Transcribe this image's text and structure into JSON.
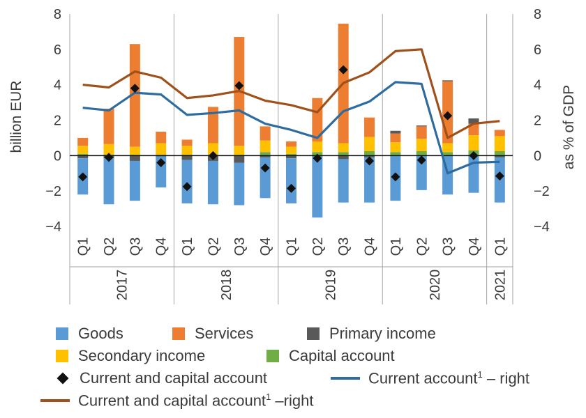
{
  "chart_data": {
    "type": "bar",
    "y_left_label": "billion EUR",
    "y_right_label": "as % of GDP",
    "ylim": [
      -4,
      8
    ],
    "y_ticks": [
      -4,
      -2,
      0,
      2,
      4,
      6,
      8
    ],
    "y_tick_labels": [
      "−4",
      "−2",
      "0",
      "2",
      "4",
      "6",
      "8"
    ],
    "quarters": [
      "Q1",
      "Q2",
      "Q3",
      "Q4",
      "Q1",
      "Q2",
      "Q3",
      "Q4",
      "Q1",
      "Q2",
      "Q3",
      "Q4",
      "Q1",
      "Q2",
      "Q3",
      "Q4",
      "Q1"
    ],
    "years": [
      {
        "label": "2017",
        "count": 4
      },
      {
        "label": "2018",
        "count": 4
      },
      {
        "label": "2019",
        "count": 4
      },
      {
        "label": "2020",
        "count": 4
      },
      {
        "label": "2021",
        "count": 1
      }
    ],
    "stack_series": [
      {
        "key": "capital",
        "name": "Capital account",
        "color": "#70ad47",
        "values": [
          0.1,
          0.05,
          0.05,
          0.05,
          0.05,
          0.05,
          0.05,
          0.2,
          0.1,
          0.2,
          0.2,
          0.25,
          0.2,
          0.25,
          0.2,
          0.3,
          0.25
        ]
      },
      {
        "key": "secondary",
        "name": "Secondary income",
        "color": "#ffc000",
        "values": [
          0.45,
          0.6,
          0.45,
          0.65,
          0.5,
          0.65,
          0.5,
          0.65,
          0.4,
          0.6,
          0.5,
          0.8,
          0.55,
          0.7,
          0.5,
          0.85,
          0.85
        ]
      },
      {
        "key": "services",
        "name": "Services",
        "color": "#ed7d31",
        "values": [
          0.45,
          2.0,
          5.8,
          0.65,
          0.35,
          2.05,
          6.15,
          0.8,
          0.3,
          2.45,
          6.75,
          1.1,
          0.5,
          0.7,
          3.5,
          0.65,
          0.35
        ]
      },
      {
        "key": "primary",
        "name": "Primary income",
        "color": "#595959",
        "values": [
          -0.15,
          -0.15,
          -0.3,
          -0.05,
          -0.25,
          -0.3,
          -0.4,
          -0.1,
          -0.15,
          -0.05,
          -0.2,
          -0.1,
          0.15,
          0.05,
          0.05,
          0.3,
          -0.1
        ]
      },
      {
        "key": "goods",
        "name": "Goods",
        "color": "#5b9bd5",
        "values": [
          -2.05,
          -2.6,
          -2.25,
          -1.75,
          -2.45,
          -2.45,
          -2.4,
          -2.3,
          -2.55,
          -3.45,
          -2.45,
          -2.55,
          -2.55,
          -1.95,
          -2.2,
          -2.1,
          -2.55
        ]
      }
    ],
    "markers": {
      "name": "Current and capital account",
      "color": "#111111",
      "values": [
        -1.2,
        -0.1,
        3.8,
        -0.4,
        -1.75,
        0.0,
        3.95,
        -0.7,
        -1.85,
        -0.15,
        4.85,
        -0.3,
        -1.2,
        -0.25,
        2.25,
        0.0,
        -1.15
      ]
    },
    "lines": [
      {
        "name": "Current account¹ – right",
        "color": "#2e6b9e",
        "values": [
          2.7,
          2.55,
          3.55,
          3.45,
          2.3,
          2.4,
          2.55,
          1.8,
          1.45,
          1.0,
          2.5,
          3.05,
          4.15,
          4.05,
          -1.0,
          -0.4,
          -0.35
        ]
      },
      {
        "name": "Current and capital account¹ –right",
        "color": "#a0501a",
        "values": [
          4.0,
          3.85,
          4.75,
          4.4,
          3.25,
          3.4,
          3.65,
          3.1,
          2.85,
          2.45,
          4.1,
          4.7,
          5.9,
          6.0,
          1.0,
          1.8,
          1.95
        ]
      }
    ],
    "grid": false,
    "legend_position": "bottom"
  },
  "legend": {
    "goods": "Goods",
    "services": "Services",
    "primary": "Primary income",
    "secondary": "Secondary income",
    "capital": "Capital account",
    "markers": "Current and capital account",
    "ca_line_main": "Current account",
    "ca_line_sup": "1",
    "ca_line_tail": " – right",
    "cca_line_main": "Current and capital account",
    "cca_line_sup": "1",
    "cca_line_tail": " –right"
  }
}
